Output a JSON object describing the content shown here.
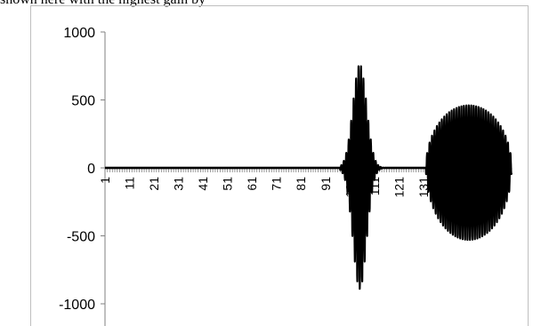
{
  "caption": "shown here with the highest gain by",
  "chart_data": {
    "type": "line",
    "title": "",
    "xlabel": "",
    "ylabel": "",
    "ylim": [
      -1000,
      1000
    ],
    "yticks": [
      1000,
      500,
      0,
      -500,
      -1000
    ],
    "xticks": [
      1,
      11,
      21,
      31,
      41,
      51,
      61,
      71,
      81,
      91,
      101,
      111,
      121,
      131,
      141,
      151,
      161
    ],
    "x_range": [
      1,
      167
    ],
    "grid": false,
    "legend": "none",
    "series_color": "#000000",
    "series": [
      {
        "segments": [
          {
            "type": "flat",
            "x_start": 1,
            "x_end": 97,
            "amplitude": 0
          },
          {
            "type": "burst",
            "x_start": 97,
            "x_end": 115,
            "peak_x": 105,
            "positive_peak": 760,
            "negative_peak": -890,
            "cycles_per_x": 1.0
          },
          {
            "type": "flat",
            "x_start": 115,
            "x_end": 132,
            "amplitude": 0
          },
          {
            "type": "burst",
            "x_start": 132,
            "x_end": 167,
            "positive_peak": 460,
            "negative_peak": -530,
            "cycles_per_x": 1.0,
            "shape": "round"
          }
        ]
      }
    ]
  }
}
